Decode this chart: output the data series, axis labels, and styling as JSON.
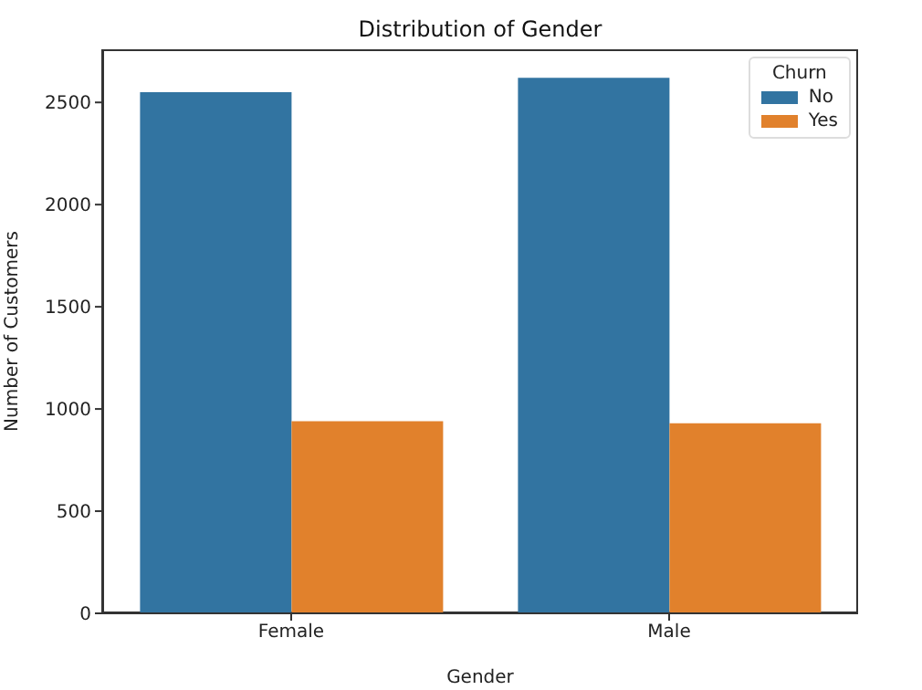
{
  "chart_data": {
    "type": "bar",
    "title": "Distribution of Gender",
    "xlabel": "Gender",
    "ylabel": "Number of Customers",
    "legend_title": "Churn",
    "categories": [
      "Female",
      "Male"
    ],
    "series": [
      {
        "name": "No",
        "color": "#3274a1",
        "values": [
          2550,
          2620
        ]
      },
      {
        "name": "Yes",
        "color": "#e1812c",
        "values": [
          940,
          930
        ]
      }
    ],
    "ylim": [
      0,
      2760
    ],
    "yticks": [
      0,
      500,
      1000,
      1500,
      2000,
      2500
    ],
    "legend": "top right"
  }
}
